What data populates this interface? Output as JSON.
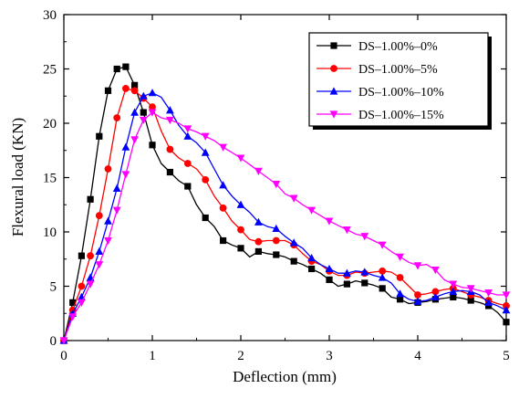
{
  "chart_data": {
    "type": "line",
    "xlabel": "Deflection (mm)",
    "ylabel": "Flexural load (KN)",
    "xlim": [
      0,
      5
    ],
    "ylim": [
      0,
      30
    ],
    "xticks": [
      0,
      1,
      2,
      3,
      4,
      5
    ],
    "yticks": [
      0,
      5,
      10,
      15,
      20,
      25,
      30
    ],
    "x_tick_labels": [
      "0",
      "1",
      "2",
      "3",
      "4",
      "5"
    ],
    "y_tick_labels": [
      "0",
      "5",
      "10",
      "15",
      "20",
      "25",
      "30"
    ],
    "grid": false,
    "legend_position": "top-right",
    "series": [
      {
        "name": "DS–1.00%–0%",
        "color": "#000000",
        "marker": "square",
        "x": [
          0,
          0.1,
          0.2,
          0.3,
          0.4,
          0.5,
          0.6,
          0.7,
          0.8,
          0.9,
          1.0,
          1.1,
          1.2,
          1.3,
          1.4,
          1.5,
          1.6,
          1.7,
          1.8,
          1.9,
          2.0,
          2.1,
          2.2,
          2.3,
          2.4,
          2.5,
          2.6,
          2.7,
          2.8,
          2.9,
          3.0,
          3.1,
          3.2,
          3.3,
          3.4,
          3.5,
          3.6,
          3.7,
          3.8,
          3.9,
          4.0,
          4.1,
          4.2,
          4.3,
          4.4,
          4.5,
          4.6,
          4.7,
          4.8,
          4.9,
          5.0
        ],
        "y": [
          0,
          3.5,
          7.8,
          13.0,
          18.8,
          23.0,
          25.0,
          25.2,
          23.5,
          21.0,
          18.0,
          16.3,
          15.5,
          14.7,
          14.2,
          12.5,
          11.3,
          10.5,
          9.2,
          8.8,
          8.5,
          7.7,
          8.2,
          8.0,
          7.9,
          7.7,
          7.3,
          7.0,
          6.6,
          6.2,
          5.6,
          5.0,
          5.2,
          5.5,
          5.3,
          5.1,
          4.8,
          4.0,
          3.8,
          3.4,
          3.5,
          3.6,
          3.8,
          3.9,
          4.0,
          3.9,
          3.7,
          3.5,
          3.2,
          2.6,
          1.7
        ]
      },
      {
        "name": "DS–1.00%–5%",
        "color": "#ff0000",
        "marker": "circle",
        "x": [
          0,
          0.1,
          0.2,
          0.3,
          0.4,
          0.5,
          0.6,
          0.7,
          0.8,
          0.9,
          1.0,
          1.1,
          1.2,
          1.3,
          1.4,
          1.5,
          1.6,
          1.7,
          1.8,
          1.9,
          2.0,
          2.1,
          2.2,
          2.3,
          2.4,
          2.5,
          2.6,
          2.7,
          2.8,
          2.9,
          3.0,
          3.1,
          3.2,
          3.3,
          3.4,
          3.5,
          3.6,
          3.7,
          3.8,
          3.9,
          4.0,
          4.1,
          4.2,
          4.3,
          4.4,
          4.5,
          4.6,
          4.7,
          4.8,
          4.9,
          5.0
        ],
        "y": [
          0,
          2.8,
          5.0,
          7.8,
          11.5,
          15.8,
          20.5,
          23.2,
          23.0,
          22.3,
          21.5,
          19.3,
          17.6,
          16.8,
          16.3,
          15.8,
          14.8,
          13.3,
          12.2,
          11.0,
          10.2,
          9.3,
          9.1,
          9.2,
          9.2,
          9.2,
          8.8,
          8.0,
          7.3,
          7.0,
          6.4,
          6.0,
          6.0,
          6.3,
          6.2,
          6.3,
          6.4,
          6.3,
          5.8,
          5.0,
          4.2,
          4.3,
          4.5,
          4.7,
          4.8,
          4.5,
          4.2,
          4.0,
          3.7,
          3.4,
          3.2
        ]
      },
      {
        "name": "DS–1.00%–10%",
        "color": "#0000ff",
        "marker": "triangle-up",
        "x": [
          0,
          0.1,
          0.2,
          0.3,
          0.4,
          0.5,
          0.6,
          0.7,
          0.8,
          0.9,
          1.0,
          1.1,
          1.2,
          1.3,
          1.4,
          1.5,
          1.6,
          1.7,
          1.8,
          1.9,
          2.0,
          2.1,
          2.2,
          2.3,
          2.4,
          2.5,
          2.6,
          2.7,
          2.8,
          2.9,
          3.0,
          3.1,
          3.2,
          3.3,
          3.4,
          3.5,
          3.6,
          3.7,
          3.8,
          3.9,
          4.0,
          4.1,
          4.2,
          4.3,
          4.4,
          4.5,
          4.6,
          4.7,
          4.8,
          4.9,
          5.0
        ],
        "y": [
          0,
          2.5,
          4.0,
          5.8,
          8.2,
          11.0,
          14.0,
          17.8,
          21.0,
          22.5,
          22.8,
          22.4,
          21.2,
          19.8,
          18.8,
          18.2,
          17.3,
          15.8,
          14.3,
          13.3,
          12.5,
          11.8,
          10.9,
          10.5,
          10.3,
          9.6,
          9.0,
          8.5,
          7.6,
          7.0,
          6.6,
          6.2,
          6.2,
          6.4,
          6.3,
          6.0,
          5.8,
          5.3,
          4.3,
          3.8,
          3.6,
          3.7,
          4.0,
          4.3,
          4.5,
          4.6,
          4.5,
          4.2,
          3.5,
          3.2,
          2.8
        ]
      },
      {
        "name": "DS–1.00%–15%",
        "color": "#ff00ff",
        "marker": "triangle-down",
        "x": [
          0,
          0.1,
          0.2,
          0.3,
          0.4,
          0.5,
          0.6,
          0.7,
          0.8,
          0.9,
          1.0,
          1.1,
          1.2,
          1.3,
          1.4,
          1.5,
          1.6,
          1.7,
          1.8,
          1.9,
          2.0,
          2.1,
          2.2,
          2.3,
          2.4,
          2.5,
          2.6,
          2.7,
          2.8,
          2.9,
          3.0,
          3.1,
          3.2,
          3.3,
          3.4,
          3.5,
          3.6,
          3.7,
          3.8,
          3.9,
          4.0,
          4.1,
          4.2,
          4.3,
          4.4,
          4.5,
          4.6,
          4.7,
          4.8,
          4.9,
          5.0
        ],
        "y": [
          0,
          2.2,
          3.5,
          5.2,
          7.0,
          9.2,
          12.0,
          15.3,
          18.5,
          20.3,
          21.0,
          20.5,
          20.3,
          20.0,
          19.5,
          19.2,
          18.8,
          18.4,
          17.8,
          17.3,
          16.8,
          16.2,
          15.6,
          15.0,
          14.4,
          13.5,
          13.1,
          12.5,
          12.0,
          11.5,
          11.0,
          10.6,
          10.2,
          9.8,
          9.6,
          9.2,
          8.8,
          8.2,
          7.7,
          7.2,
          6.9,
          7.0,
          6.5,
          5.6,
          5.2,
          4.9,
          4.8,
          4.6,
          4.4,
          4.2,
          4.2
        ]
      }
    ]
  }
}
